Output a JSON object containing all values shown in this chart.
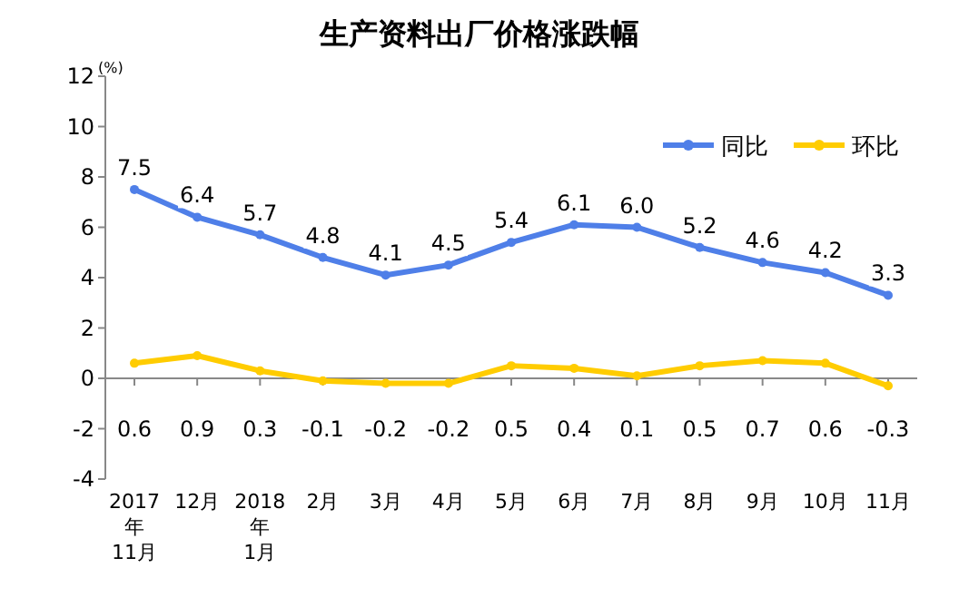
{
  "chart_data": {
    "type": "line",
    "title": "生产资料出厂价格涨跌幅",
    "ylabel": "(%)",
    "categories": [
      "2017\n年\n11月",
      "12月",
      "2018\n年\n1月",
      "2月",
      "3月",
      "4月",
      "5月",
      "6月",
      "7月",
      "8月",
      "9月",
      "10月",
      "11月"
    ],
    "series": [
      {
        "name": "同比",
        "color": "#4f7fe8",
        "values": [
          7.5,
          6.4,
          5.7,
          4.8,
          4.1,
          4.5,
          5.4,
          6.1,
          6.0,
          5.2,
          4.6,
          4.2,
          3.3
        ],
        "value_labels": [
          "7.5",
          "6.4",
          "5.7",
          "4.8",
          "4.1",
          "4.5",
          "5.4",
          "6.1",
          "6.0",
          "5.2",
          "4.6",
          "4.2",
          "3.3"
        ]
      },
      {
        "name": "环比",
        "color": "#ffcc00",
        "values": [
          0.6,
          0.9,
          0.3,
          -0.1,
          -0.2,
          -0.2,
          0.5,
          0.4,
          0.1,
          0.5,
          0.7,
          0.6,
          -0.3
        ],
        "value_labels": [
          "0.6",
          "0.9",
          "0.3",
          "-0.1",
          "-0.2",
          "-0.2",
          "0.5",
          "0.4",
          "0.1",
          "0.5",
          "0.7",
          "0.6",
          "-0.3"
        ]
      }
    ],
    "ylim": [
      -4,
      12
    ],
    "yticks": [
      -4,
      -2,
      0,
      2,
      4,
      6,
      8,
      10,
      12
    ],
    "legend": "top right",
    "marker": "circle",
    "line_style": "solid"
  }
}
